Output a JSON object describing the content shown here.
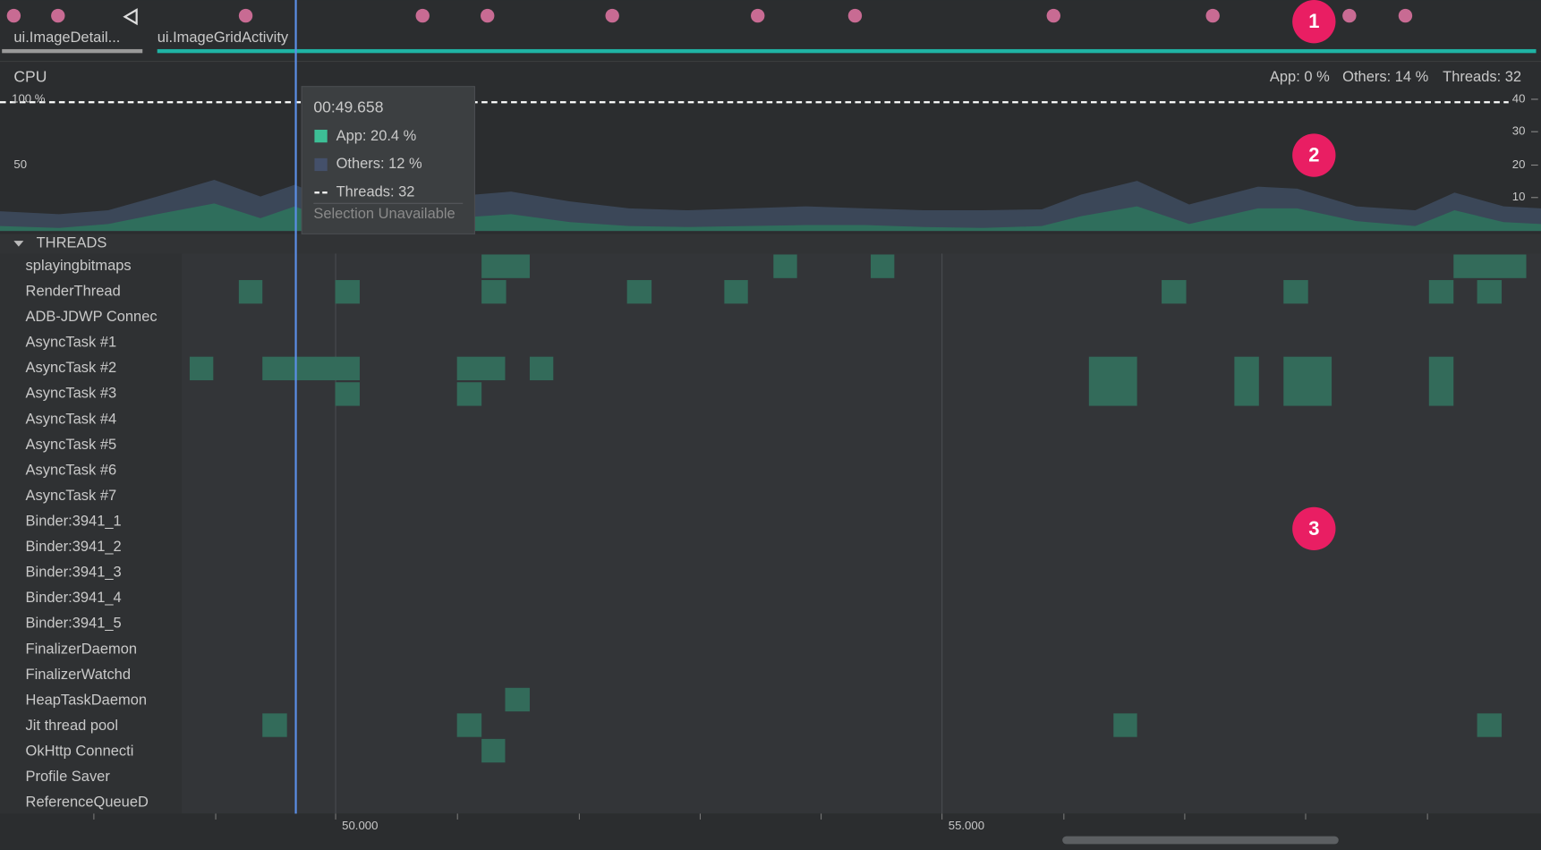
{
  "top": {
    "activities": [
      "ui.ImageDetail...",
      "ui.ImageGridActivity"
    ]
  },
  "callouts": [
    "1",
    "2",
    "3"
  ],
  "cpu": {
    "title": "CPU",
    "summary": [
      "App: 0 %",
      "Others: 14 %",
      "Threads: 32"
    ],
    "left_ticks": [
      "100 %",
      "50"
    ],
    "right_ticks": [
      "40",
      "30",
      "20",
      "10"
    ]
  },
  "tooltip": {
    "time": "00:49.658",
    "items": [
      "App: 20.4 %",
      "Others: 12 %",
      "Threads: 32"
    ],
    "note": "Selection Unavailable"
  },
  "threads": {
    "header": "THREADS",
    "names": [
      "splayingbitmaps",
      "RenderThread",
      "ADB-JDWP Connec",
      "AsyncTask #1",
      "AsyncTask #2",
      "AsyncTask #3",
      "AsyncTask #4",
      "AsyncTask #5",
      "AsyncTask #6",
      "AsyncTask #7",
      "Binder:3941_1",
      "Binder:3941_2",
      "Binder:3941_3",
      "Binder:3941_4",
      "Binder:3941_5",
      "FinalizerDaemon",
      "FinalizerWatchd",
      "HeapTaskDaemon",
      "Jit thread pool",
      "OkHttp Connecti",
      "Profile Saver",
      "ReferenceQueueD"
    ]
  },
  "timeline": {
    "labels": [
      "50.000",
      "55.000"
    ]
  }
}
